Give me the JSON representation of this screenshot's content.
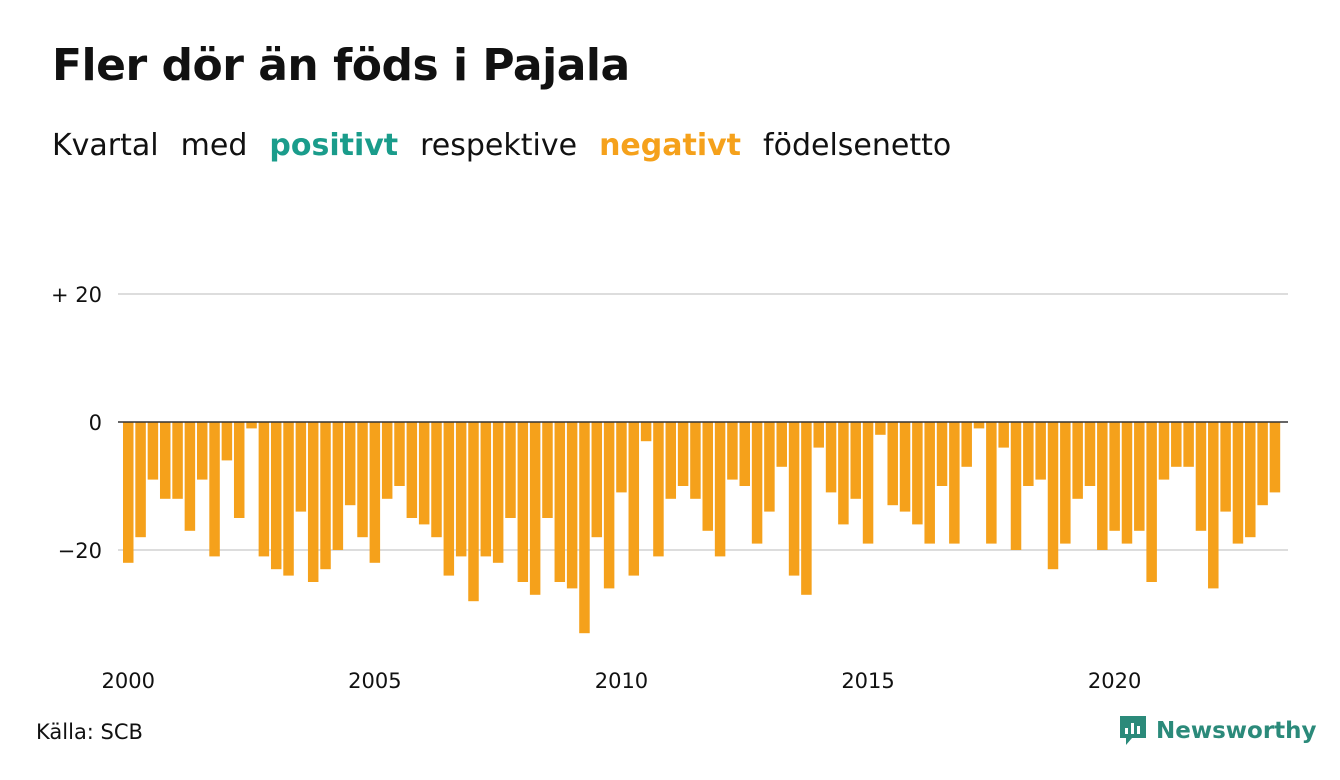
{
  "title": "Fler dör än föds i Pajala",
  "subtitle": {
    "w1": "Kvartal",
    "w2": "med",
    "positive": "positivt",
    "w3": "respektive",
    "negative": "negativt",
    "w4": "födelsenetto"
  },
  "source": "Källa: SCB",
  "logo_text": "Newsworthy",
  "colors": {
    "positive": "#1a9c8b",
    "negative": "#f5a11b",
    "grid": "#dddddd",
    "zero_line": "#333333"
  },
  "chart_data": {
    "type": "bar",
    "x_start_year": 2000,
    "periods_per_year": 4,
    "values": [
      -22,
      -18,
      -9,
      -12,
      -12,
      -17,
      -9,
      -21,
      -6,
      -15,
      -1,
      -21,
      -23,
      -24,
      -14,
      -25,
      -23,
      -20,
      -13,
      -18,
      -22,
      -12,
      -10,
      -15,
      -16,
      -18,
      -24,
      -21,
      -28,
      -21,
      -22,
      -15,
      -25,
      -27,
      -15,
      -25,
      -26,
      -33,
      -18,
      -26,
      -11,
      -24,
      -3,
      -21,
      -12,
      -10,
      -12,
      -17,
      -21,
      -9,
      -10,
      -19,
      -14,
      -7,
      -24,
      -27,
      -4,
      -11,
      -16,
      -12,
      -19,
      -2,
      -13,
      -14,
      -16,
      -19,
      -10,
      -19,
      -7,
      -1,
      -19,
      -4,
      -20,
      -10,
      -9,
      -23,
      -19,
      -12,
      -10,
      -20,
      -17,
      -19,
      -17,
      -25,
      -9,
      -7,
      -7,
      -17,
      -26,
      -14,
      -19,
      -18,
      -13,
      -11
    ],
    "x_ticks": [
      "2000",
      "2005",
      "2010",
      "2015",
      "2020"
    ],
    "y_ticks": [
      {
        "value": 20,
        "label": "+ 20"
      },
      {
        "value": 0,
        "label": "0"
      },
      {
        "value": -20,
        "label": "−20"
      }
    ],
    "ylim": [
      -36,
      30
    ],
    "grid": true
  }
}
